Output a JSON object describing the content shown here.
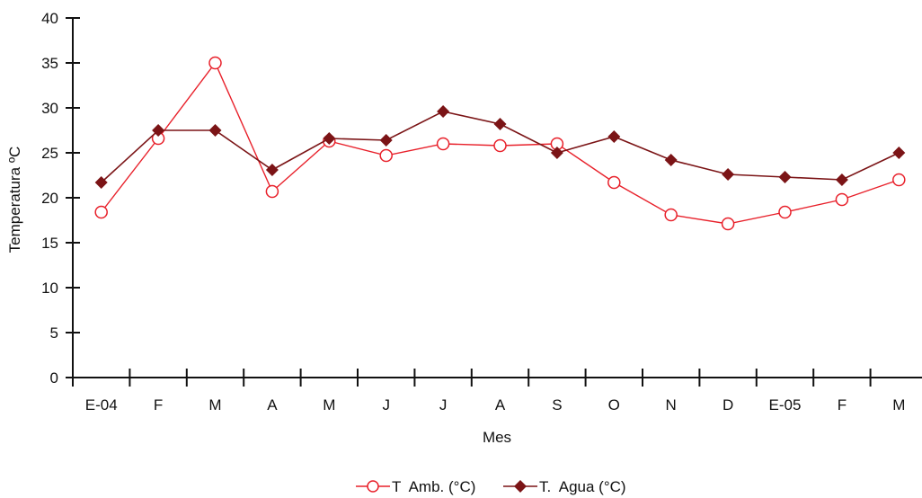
{
  "chart_data": {
    "type": "line",
    "title": "",
    "xlabel": "Mes",
    "ylabel": "Temperatura ºC",
    "categories": [
      "E-04",
      "F",
      "M",
      "A",
      "M",
      "J",
      "J",
      "A",
      "S",
      "O",
      "N",
      "D",
      "E-05",
      "F",
      "M"
    ],
    "ylim": [
      0,
      40
    ],
    "yticks": [
      0,
      5,
      10,
      15,
      20,
      25,
      30,
      35,
      40
    ],
    "grid": false,
    "legend_position": "bottom",
    "series": [
      {
        "name": "T  Amb. (°C)",
        "marker": "open-circle",
        "color": "#e8202a",
        "values": [
          18.4,
          26.6,
          35.0,
          20.7,
          26.3,
          24.7,
          26.0,
          25.8,
          26.0,
          21.7,
          18.1,
          17.1,
          18.4,
          19.8,
          22.0
        ]
      },
      {
        "name": "T.  Agua (°C)",
        "marker": "filled-diamond",
        "color": "#7b1416",
        "values": [
          21.7,
          27.5,
          27.5,
          23.1,
          26.6,
          26.4,
          29.6,
          28.2,
          25.0,
          26.8,
          24.2,
          22.6,
          22.3,
          22.0,
          25.0
        ]
      }
    ]
  }
}
